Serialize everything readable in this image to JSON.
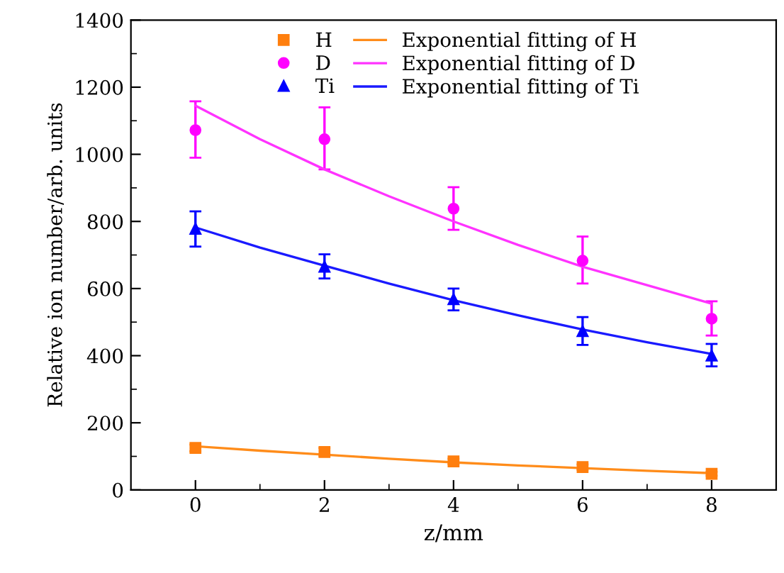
{
  "chart_data": {
    "type": "scatter",
    "xlabel": "z/mm",
    "ylabel": "Relative ion number/arb. units",
    "xlim": [
      -1,
      9
    ],
    "ylim": [
      0,
      1400
    ],
    "xticks": [
      0,
      {
        "value": 1,
        "label": null
      },
      2,
      {
        "value": 3,
        "label": null
      },
      4,
      {
        "value": 5,
        "label": null
      },
      6,
      {
        "value": 7,
        "label": null
      },
      8
    ],
    "yticks": [
      0,
      {
        "value": 100,
        "label": null
      },
      200,
      {
        "value": 300,
        "label": null
      },
      400,
      {
        "value": 500,
        "label": null
      },
      600,
      {
        "value": 700,
        "label": null
      },
      800,
      {
        "value": 900,
        "label": null
      },
      1000,
      {
        "value": 1100,
        "label": null
      },
      1200,
      {
        "value": 1300,
        "label": null
      },
      1400
    ],
    "grid": false,
    "legend": "top",
    "series": [
      {
        "name": "H",
        "marker": "square",
        "color": "#ff7f0e",
        "x": [
          0,
          2,
          4,
          6,
          8
        ],
        "values": [
          125,
          113,
          85,
          68,
          48
        ],
        "errors": [
          10,
          12,
          8,
          8,
          6
        ]
      },
      {
        "name": "Exponential fitting of H",
        "type": "line",
        "marker": "none",
        "line_style": "solid",
        "color": "#ff8c1a",
        "x": [
          0,
          1,
          2,
          3,
          4,
          5,
          6,
          7,
          8
        ],
        "values": [
          130,
          117,
          105,
          93,
          82,
          73,
          65,
          57,
          50
        ]
      },
      {
        "name": "D",
        "marker": "circle",
        "color": "#ff00ff",
        "x": [
          0,
          2,
          4,
          6,
          8
        ],
        "values": [
          1072,
          1045,
          838,
          683,
          510
        ],
        "errors": [
          [
            990,
            1158
          ],
          [
            955,
            1140
          ],
          [
            775,
            902
          ],
          [
            615,
            755
          ],
          [
            460,
            562
          ]
        ]
      },
      {
        "name": "Exponential fitting of D",
        "type": "line",
        "marker": "none",
        "line_style": "solid",
        "color": "#ff33ff",
        "x": [
          0,
          1,
          2,
          3,
          4,
          5,
          6,
          7,
          8
        ],
        "values": [
          1145,
          1045,
          955,
          875,
          800,
          730,
          665,
          610,
          555
        ]
      },
      {
        "name": "Ti",
        "marker": "triangle",
        "color": "#0000ff",
        "x": [
          0,
          2,
          4,
          6,
          8
        ],
        "values": [
          778,
          665,
          568,
          473,
          400
        ],
        "errors": [
          [
            725,
            830
          ],
          [
            630,
            702
          ],
          [
            535,
            600
          ],
          [
            432,
            515
          ],
          [
            368,
            435
          ]
        ]
      },
      {
        "name": "Exponential fitting of Ti",
        "type": "line",
        "marker": "none",
        "line_style": "solid",
        "color": "#1a1aff",
        "x": [
          0,
          1,
          2,
          3,
          4,
          5,
          6,
          7,
          8
        ],
        "values": [
          782,
          722,
          668,
          615,
          565,
          520,
          478,
          440,
          405
        ]
      }
    ]
  }
}
